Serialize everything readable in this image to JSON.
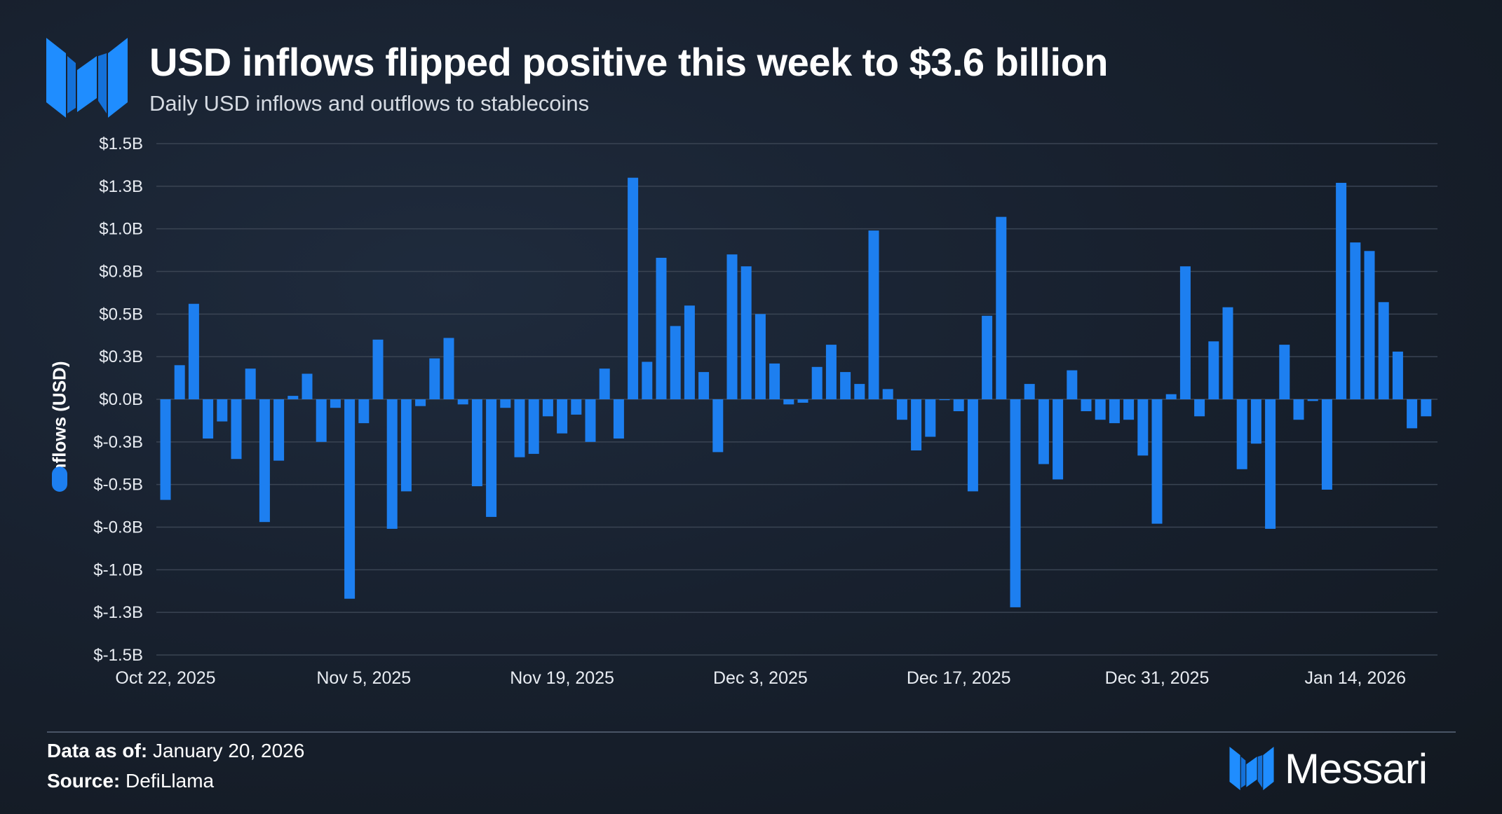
{
  "header": {
    "title": "USD inflows flipped positive this week to $3.6 billion",
    "subtitle": "Daily USD inflows and outflows to stablecoins"
  },
  "colors": {
    "bar": "#1d7ff0",
    "logo": "#1f8dff",
    "grid": "#3a4453"
  },
  "legend": {
    "series_name": "Inflows (USD)"
  },
  "footer": {
    "data_as_of_label": "Data as of:",
    "data_as_of_value": "January 20, 2026",
    "source_label": "Source:",
    "source_value": "DefiLlama"
  },
  "brand": {
    "name": "Messari",
    "icon": "messari-logo-icon"
  },
  "chart_data": {
    "type": "bar",
    "title": "USD inflows flipped positive this week to $3.6 billion",
    "subtitle": "Daily USD inflows and outflows to stablecoins",
    "ylabel": "Inflows (USD)",
    "xlabel": "",
    "ylim": [
      -1.5,
      1.5
    ],
    "y_ticks": [
      1.5,
      1.25,
      1.0,
      0.75,
      0.5,
      0.25,
      0.0,
      -0.25,
      -0.5,
      -0.75,
      -1.0,
      -1.25,
      -1.5
    ],
    "y_tick_labels": [
      "$1.5B",
      "$1.3B",
      "$1.0B",
      "$0.8B",
      "$0.5B",
      "$0.3B",
      "$0.0B",
      "$-0.3B",
      "$-0.5B",
      "$-0.8B",
      "$-1.0B",
      "$-1.3B",
      "$-1.5B"
    ],
    "x_tick_labels": [
      "Oct 22, 2025",
      "Nov 5, 2025",
      "Nov 19, 2025",
      "Dec 3, 2025",
      "Dec 17, 2025",
      "Dec 31, 2025",
      "Jan 14, 2026"
    ],
    "x_tick_indices": [
      0,
      14,
      28,
      42,
      56,
      70,
      84
    ],
    "start_date": "Oct 22, 2025",
    "grid": true,
    "legend_position": "left",
    "series": [
      {
        "name": "Inflows (USD)",
        "unit": "billion USD",
        "values": [
          -0.59,
          0.2,
          0.56,
          -0.23,
          -0.13,
          -0.35,
          0.18,
          -0.72,
          -0.36,
          0.02,
          0.15,
          -0.25,
          -0.05,
          -1.17,
          -0.14,
          0.35,
          -0.76,
          -0.54,
          -0.04,
          0.24,
          0.36,
          -0.03,
          -0.51,
          -0.69,
          -0.05,
          -0.34,
          -0.32,
          -0.1,
          -0.2,
          -0.09,
          -0.25,
          0.18,
          -0.23,
          1.3,
          0.22,
          0.83,
          0.43,
          0.55,
          0.16,
          -0.31,
          0.85,
          0.78,
          0.5,
          0.21,
          -0.03,
          -0.02,
          0.19,
          0.32,
          0.16,
          0.09,
          0.99,
          0.06,
          -0.12,
          -0.3,
          -0.22,
          0.0,
          -0.07,
          -0.54,
          0.49,
          1.07,
          -1.22,
          0.09,
          -0.38,
          -0.47,
          0.17,
          -0.07,
          -0.12,
          -0.14,
          -0.12,
          -0.33,
          -0.73,
          0.03,
          0.78,
          -0.1,
          0.34,
          0.54,
          -0.41,
          -0.26,
          -0.76,
          0.32,
          -0.12,
          -0.01,
          -0.53,
          1.27,
          0.92,
          0.87,
          0.57,
          0.28,
          -0.17,
          -0.1
        ]
      }
    ]
  }
}
